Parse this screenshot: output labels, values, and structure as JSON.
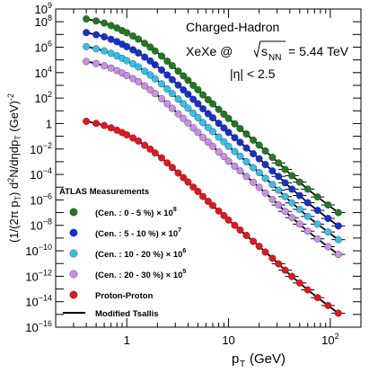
{
  "chart_data": {
    "type": "scatter",
    "title": "Charged-Hadron",
    "system_label": "XeXe @",
    "energy_label_s": "s",
    "energy_label_sub": "NN",
    "energy_label_value": "= 5.44 TeV",
    "eta_label": "|η| < 2.5",
    "xlabel_main": "p",
    "xlabel_sub": "T",
    "xlabel_unit": "(GeV)",
    "ylabel": "(1/(2π p_T) d²N/dηdp_T (GeV)^-2",
    "x_scale": "log",
    "y_scale": "log",
    "xlim": [
      0.2,
      200
    ],
    "ylim": [
      1e-16,
      1000000000.0
    ],
    "x_ticks": [
      {
        "value": 1,
        "base": "1",
        "exp": ""
      },
      {
        "value": 10,
        "base": "10",
        "exp": ""
      },
      {
        "value": 100,
        "base": "10",
        "exp": "2"
      }
    ],
    "y_ticks": [
      {
        "value": 1e-16,
        "base": "10",
        "exp": "−16"
      },
      {
        "value": 1e-14,
        "base": "10",
        "exp": "−14"
      },
      {
        "value": 1e-12,
        "base": "10",
        "exp": "−12"
      },
      {
        "value": 1e-10,
        "base": "10",
        "exp": "−10"
      },
      {
        "value": 1e-08,
        "base": "10",
        "exp": "−8"
      },
      {
        "value": 1e-06,
        "base": "10",
        "exp": "−6"
      },
      {
        "value": 0.0001,
        "base": "10",
        "exp": "−4"
      },
      {
        "value": 0.01,
        "base": "10",
        "exp": "−2"
      },
      {
        "value": 1,
        "base": "1",
        "exp": ""
      },
      {
        "value": 100,
        "base": "10",
        "exp": "2"
      },
      {
        "value": 10000,
        "base": "10",
        "exp": "4"
      },
      {
        "value": 1000000,
        "base": "10",
        "exp": "6"
      },
      {
        "value": 100000000,
        "base": "10",
        "exp": "8"
      },
      {
        "value": 1000000000,
        "base": "10",
        "exp": "9"
      }
    ],
    "legend_header": "ATLAS Measurements",
    "legend_position": "bottom-left",
    "x": [
      0.4,
      0.5,
      0.6,
      0.7,
      0.8,
      0.9,
      1.0,
      1.15,
      1.3,
      1.5,
      1.7,
      1.9,
      2.2,
      2.5,
      2.8,
      3.2,
      3.6,
      4.0,
      4.5,
      5.0,
      5.6,
      6.3,
      7.0,
      8.0,
      9.0,
      10.0,
      11.5,
      13.0,
      15.0,
      17.5,
      20.0,
      23.0,
      27.0,
      31.0,
      36.0,
      42.0,
      50.0,
      60.0,
      75.0,
      95.0,
      120.0
    ],
    "series": [
      {
        "name": "(Cen. : 0 - 5 %) × 10",
        "scale_exp": "8",
        "color": "#1e7a1e",
        "values": [
          165000000.0,
          115000000.0,
          78000000.0,
          50000000.0,
          32000000.0,
          20000000.0,
          13500000.0,
          7500000.0,
          4300000.0,
          2000000.0,
          1000000.0,
          500000.0,
          200000.0,
          80000.0,
          35000.0,
          13000.0,
          5500.0,
          2500.0,
          1000.0,
          450.0,
          180.0,
          75,
          35,
          13,
          5.5,
          2.5,
          0.95,
          0.4,
          0.15,
          0.05,
          0.02,
          0.007,
          0.0022,
          0.0008,
          0.00025,
          8e-05,
          2.5e-05,
          7e-06,
          1.7e-06,
          4e-07,
          1e-07
        ]
      },
      {
        "name": "(Cen. : 5 - 10 %) × 10",
        "scale_exp": "7",
        "color": "#1530d0",
        "values": [
          14000000.0,
          9500000.0,
          6500000.0,
          4200000.0,
          2700000.0,
          1700000.0,
          1100000.0,
          620000.0,
          350000.0,
          165000.0,
          82000.0,
          41000.0,
          16000.0,
          6500.0,
          2800.0,
          1050.0,
          440.0,
          200.0,
          80,
          36,
          14.5,
          6.0,
          2.8,
          1.05,
          0.45,
          0.2,
          0.078,
          0.033,
          0.012,
          0.0042,
          0.0017,
          0.0006,
          0.00019,
          7e-05,
          2.2e-05,
          7e-06,
          2.2e-06,
          6e-07,
          1.5e-07,
          3.5e-08,
          9e-09
        ]
      },
      {
        "name": "(Cen. : 10 - 20 %) × 10",
        "scale_exp": "6",
        "color": "#35c0ec",
        "values": [
          1100000.0,
          750000.0,
          510000.0,
          330000.0,
          210000.0,
          135000.0,
          87000.0,
          49000.0,
          28000.0,
          13000.0,
          6500.0,
          3250.0,
          1300.0,
          520.0,
          225.0,
          84,
          36,
          16,
          6.5,
          2.9,
          1.17,
          0.49,
          0.23,
          0.085,
          0.037,
          0.016,
          0.0063,
          0.0027,
          0.001,
          0.00034,
          0.00014,
          5e-05,
          1.6e-05,
          5.8e-06,
          1.8e-06,
          5.8e-07,
          1.8e-07,
          5e-08,
          1.25e-08,
          3e-09,
          7.5e-10
        ]
      },
      {
        "name": "(Cen. : 20 - 30 %) × 10",
        "scale_exp": "5",
        "color": "#c98ee8",
        "values": [
          75000.0,
          52000.0,
          35000.0,
          23000.0,
          14500.0,
          9300.0,
          6000.0,
          3400.0,
          1950.0,
          900.0,
          450.0,
          225.0,
          90,
          36,
          15.6,
          5.8,
          2.5,
          1.1,
          0.45,
          0.2,
          0.081,
          0.034,
          0.016,
          0.0059,
          0.0026,
          0.0011,
          0.00044,
          0.00019,
          7e-05,
          2.4e-05,
          9.7e-06,
          3.5e-06,
          1.1e-06,
          4e-07,
          1.25e-07,
          4e-08,
          1.25e-08,
          3.5e-09,
          8.7e-10,
          2.1e-10,
          5.2e-11
        ]
      },
      {
        "name": "Proton-Proton",
        "scale_exp": "",
        "color": "#e8141c",
        "values": [
          1.5,
          1.02,
          0.7,
          0.46,
          0.3,
          0.195,
          0.128,
          0.073,
          0.042,
          0.0195,
          0.0098,
          0.0049,
          0.002,
          0.0008,
          0.00035,
          0.00013,
          5.6e-05,
          2.5e-05,
          1.02e-05,
          4.6e-06,
          1.85e-06,
          7.7e-07,
          3.6e-07,
          1.35e-07,
          5.9e-08,
          2.6e-08,
          1e-08,
          4.3e-09,
          1.6e-09,
          5.5e-10,
          2.25e-10,
          8e-11,
          2.6e-11,
          9.5e-12,
          3e-12,
          9.6e-13,
          3e-13,
          8.5e-14,
          2.1e-14,
          5e-15,
          1.25e-15
        ]
      }
    ],
    "fit_label": "Modified Tsallis",
    "fit_color": "#000000"
  }
}
